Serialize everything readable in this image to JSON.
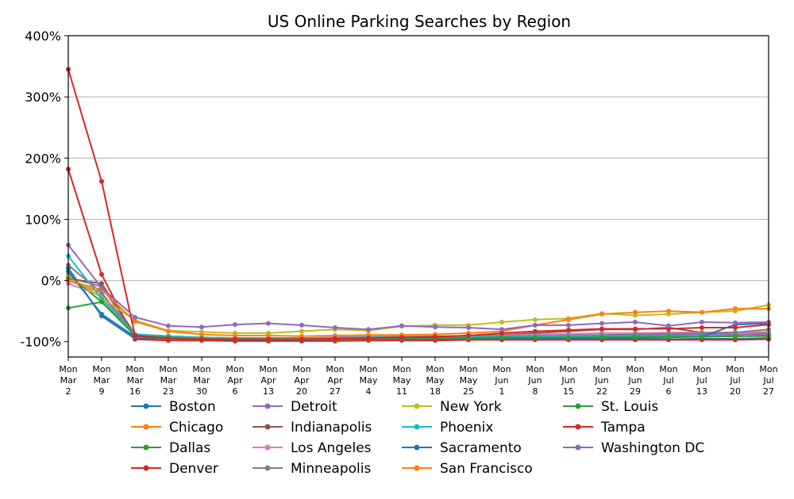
{
  "chart_data": {
    "type": "line",
    "title": "US Online Parking Searches by Region",
    "xlabel": "",
    "ylabel": "",
    "x_labels": [
      [
        "Mon",
        "Mar",
        "2"
      ],
      [
        "Mon",
        "Mar",
        "9"
      ],
      [
        "Mon",
        "Mar",
        "16"
      ],
      [
        "Mon",
        "Mar",
        "23"
      ],
      [
        "Mon",
        "Mar",
        "30"
      ],
      [
        "Mon",
        "Apr",
        "6"
      ],
      [
        "Mon",
        "Apr",
        "13"
      ],
      [
        "Mon",
        "Apr",
        "20"
      ],
      [
        "Mon",
        "Apr",
        "27"
      ],
      [
        "Mon",
        "May",
        "4"
      ],
      [
        "Mon",
        "May",
        "11"
      ],
      [
        "Mon",
        "May",
        "18"
      ],
      [
        "Mon",
        "May",
        "25"
      ],
      [
        "Mon",
        "Jun",
        "1"
      ],
      [
        "Mon",
        "Jun",
        "8"
      ],
      [
        "Mon",
        "Jun",
        "15"
      ],
      [
        "Mon",
        "Jun",
        "22"
      ],
      [
        "Mon",
        "Jun",
        "29"
      ],
      [
        "Mon",
        "Jul",
        "6"
      ],
      [
        "Mon",
        "Jul",
        "13"
      ],
      [
        "Mon",
        "Jul",
        "20"
      ],
      [
        "Mon",
        "Jul",
        "27"
      ]
    ],
    "y_ticks": [
      -100,
      0,
      100,
      200,
      300,
      400
    ],
    "y_tick_labels": [
      "-100%",
      "0%",
      "100%",
      "200%",
      "300%",
      "400%"
    ],
    "ylim": [
      -125,
      400
    ],
    "grid": "horizontal",
    "legend": "below, 4 columns",
    "series": [
      {
        "name": "Boston",
        "color": "#1f77b4",
        "values": [
          20,
          -58,
          -95,
          -95,
          -97,
          -97,
          -97,
          -97,
          -97,
          -96,
          -96,
          -96,
          -96,
          -95,
          -95,
          -95,
          -95,
          -96,
          -96,
          -95,
          -95,
          -94
        ]
      },
      {
        "name": "Chicago",
        "color": "#ff7f0e",
        "values": [
          0,
          -20,
          -88,
          -92,
          -95,
          -96,
          -96,
          -96,
          -96,
          -95,
          -94,
          -93,
          -93,
          -92,
          -92,
          -91,
          -92,
          -92,
          -91,
          -91,
          -91,
          -90
        ]
      },
      {
        "name": "Dallas",
        "color": "#2ca02c",
        "values": [
          10,
          -35,
          -88,
          -91,
          -94,
          -95,
          -95,
          -95,
          -95,
          -95,
          -94,
          -94,
          -94,
          -93,
          -92,
          -92,
          -92,
          -92,
          -92,
          -91,
          -91,
          -91
        ]
      },
      {
        "name": "Denver",
        "color": "#d62728",
        "values": [
          182,
          10,
          -96,
          -98,
          -98,
          -99,
          -99,
          -99,
          -99,
          -98,
          -98,
          -98,
          -97,
          -97,
          -97,
          -97,
          -97,
          -97,
          -97,
          -97,
          -97,
          -96
        ]
      },
      {
        "name": "Detroit",
        "color": "#9467bd",
        "values": [
          5,
          -10,
          -88,
          -92,
          -94,
          -94,
          -94,
          -94,
          -93,
          -92,
          -92,
          -91,
          -91,
          -90,
          -90,
          -89,
          -89,
          -89,
          -89,
          -88,
          -88,
          -87
        ]
      },
      {
        "name": "Indianapolis",
        "color": "#8c564b",
        "values": [
          3,
          -5,
          -88,
          -91,
          -93,
          -94,
          -94,
          -94,
          -94,
          -93,
          -92,
          -92,
          -90,
          -89,
          -86,
          -83,
          -80,
          -80,
          -77,
          -85,
          -85,
          -85
        ]
      },
      {
        "name": "Los Angeles",
        "color": "#e377c2",
        "values": [
          -5,
          -25,
          -90,
          -93,
          -94,
          -95,
          -95,
          -95,
          -95,
          -94,
          -93,
          -92,
          -92,
          -90,
          -88,
          -87,
          -86,
          -86,
          -85,
          -85,
          -85,
          -84
        ]
      },
      {
        "name": "Minneapolis",
        "color": "#7f7f7f",
        "values": [
          25,
          -20,
          -90,
          -93,
          -95,
          -95,
          -95,
          -95,
          -95,
          -94,
          -93,
          -92,
          -92,
          -91,
          -90,
          -90,
          -89,
          -88,
          -87,
          -86,
          -85,
          -80
        ]
      },
      {
        "name": "New York",
        "color": "#bcbd22",
        "values": [
          8,
          -28,
          -65,
          -82,
          -84,
          -86,
          -86,
          -83,
          -80,
          -82,
          -75,
          -73,
          -73,
          -68,
          -64,
          -62,
          -54,
          -57,
          -55,
          -52,
          -50,
          -40
        ]
      },
      {
        "name": "Phoenix",
        "color": "#17becf",
        "values": [
          40,
          -30,
          -88,
          -91,
          -93,
          -94,
          -94,
          -94,
          -94,
          -93,
          -93,
          -93,
          -92,
          -92,
          -91,
          -91,
          -91,
          -91,
          -91,
          -91,
          -91,
          -90
        ]
      },
      {
        "name": "Sacramento",
        "color": "#1f77b4",
        "values": [
          15,
          -55,
          -92,
          -94,
          -96,
          -96,
          -96,
          -96,
          -95,
          -95,
          -95,
          -94,
          -94,
          -94,
          -94,
          -94,
          -94,
          -94,
          -93,
          -92,
          -72,
          -70
        ]
      },
      {
        "name": "San Francisco",
        "color": "#ff7f0e",
        "values": [
          0,
          -15,
          -67,
          -83,
          -88,
          -90,
          -90,
          -91,
          -90,
          -89,
          -89,
          -88,
          -86,
          -83,
          -73,
          -64,
          -55,
          -52,
          -50,
          -52,
          -46,
          -46
        ]
      },
      {
        "name": "St. Louis",
        "color": "#2ca02c",
        "values": [
          -45,
          -35,
          -90,
          -93,
          -95,
          -96,
          -96,
          -96,
          -96,
          -95,
          -95,
          -94,
          -94,
          -93,
          -93,
          -93,
          -92,
          -92,
          -92,
          -92,
          -91,
          -90
        ]
      },
      {
        "name": "Tampa",
        "color": "#d62728",
        "values": [
          345,
          162,
          -90,
          -95,
          -96,
          -96,
          -96,
          -96,
          -95,
          -94,
          -93,
          -92,
          -90,
          -86,
          -83,
          -81,
          -79,
          -79,
          -79,
          -77,
          -77,
          -72
        ]
      },
      {
        "name": "Washington DC",
        "color": "#9467bd",
        "values": [
          58,
          -12,
          -60,
          -74,
          -76,
          -72,
          -70,
          -73,
          -77,
          -80,
          -74,
          -76,
          -77,
          -80,
          -73,
          -73,
          -70,
          -68,
          -74,
          -68,
          -69,
          -68
        ]
      }
    ]
  }
}
